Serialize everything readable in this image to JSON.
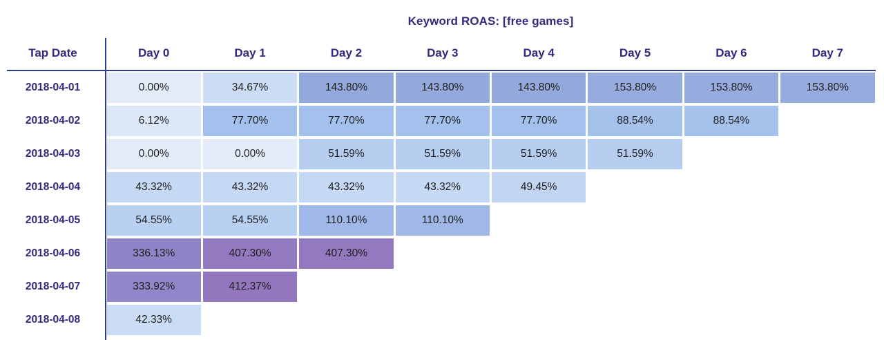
{
  "title": "Keyword ROAS: [free games]",
  "colors": {
    "ink": "#33297e",
    "line": "#2b3e8c",
    "cell_text": "#1e1e1e",
    "background": "#ffffff"
  },
  "table": {
    "corner_header": "Tap Date",
    "day_headers": [
      "Day 0",
      "Day 1",
      "Day 2",
      "Day 3",
      "Day 4",
      "Day 5",
      "Day 6",
      "Day 7"
    ],
    "rows": [
      {
        "date": "2018-04-01",
        "cells": [
          {
            "text": "0.00%",
            "bg": "#e3ecf8"
          },
          {
            "text": "34.67%",
            "bg": "#cbdcf4"
          },
          {
            "text": "143.80%",
            "bg": "#93a8db"
          },
          {
            "text": "143.80%",
            "bg": "#93a8db"
          },
          {
            "text": "143.80%",
            "bg": "#93a8db"
          },
          {
            "text": "153.80%",
            "bg": "#97abde"
          },
          {
            "text": "153.80%",
            "bg": "#97abde"
          },
          {
            "text": "153.80%",
            "bg": "#97abde"
          }
        ]
      },
      {
        "date": "2018-04-02",
        "cells": [
          {
            "text": "6.12%",
            "bg": "#dce8f7"
          },
          {
            "text": "77.70%",
            "bg": "#a4c1ed"
          },
          {
            "text": "77.70%",
            "bg": "#a4c1ed"
          },
          {
            "text": "77.70%",
            "bg": "#a4c1ed"
          },
          {
            "text": "77.70%",
            "bg": "#a4c1ed"
          },
          {
            "text": "88.54%",
            "bg": "#a5c2ec"
          },
          {
            "text": "88.54%",
            "bg": "#a5c2ec"
          },
          null
        ]
      },
      {
        "date": "2018-04-03",
        "cells": [
          {
            "text": "0.00%",
            "bg": "#e3ecf8"
          },
          {
            "text": "0.00%",
            "bg": "#e3ecf8"
          },
          {
            "text": "51.59%",
            "bg": "#b6cdf0"
          },
          {
            "text": "51.59%",
            "bg": "#b6cdf0"
          },
          {
            "text": "51.59%",
            "bg": "#b6cdf0"
          },
          {
            "text": "51.59%",
            "bg": "#b6cdf0"
          },
          null,
          null
        ]
      },
      {
        "date": "2018-04-04",
        "cells": [
          {
            "text": "43.32%",
            "bg": "#c6d9f4"
          },
          {
            "text": "43.32%",
            "bg": "#c6d9f4"
          },
          {
            "text": "43.32%",
            "bg": "#c6d9f4"
          },
          {
            "text": "43.32%",
            "bg": "#c6d9f4"
          },
          {
            "text": "49.45%",
            "bg": "#c1d5f2"
          },
          null,
          null,
          null
        ]
      },
      {
        "date": "2018-04-05",
        "cells": [
          {
            "text": "54.55%",
            "bg": "#b8d0f2"
          },
          {
            "text": "54.55%",
            "bg": "#b8d0f2"
          },
          {
            "text": "110.10%",
            "bg": "#9fb8e7"
          },
          {
            "text": "110.10%",
            "bg": "#9fb8e7"
          },
          null,
          null,
          null,
          null
        ]
      },
      {
        "date": "2018-04-06",
        "cells": [
          {
            "text": "336.13%",
            "bg": "#8e85c8"
          },
          {
            "text": "407.30%",
            "bg": "#9379c0"
          },
          {
            "text": "407.30%",
            "bg": "#9379c0"
          },
          null,
          null,
          null,
          null,
          null
        ]
      },
      {
        "date": "2018-04-07",
        "cells": [
          {
            "text": "333.92%",
            "bg": "#9086c9"
          },
          {
            "text": "412.37%",
            "bg": "#9277be"
          },
          null,
          null,
          null,
          null,
          null,
          null
        ]
      },
      {
        "date": "2018-04-08",
        "cells": [
          {
            "text": "42.33%",
            "bg": "#cadcf5"
          },
          null,
          null,
          null,
          null,
          null,
          null,
          null
        ]
      }
    ]
  },
  "chart_data": {
    "type": "heatmap",
    "title": "Keyword ROAS: [free games]",
    "x_labels": [
      "Day 0",
      "Day 1",
      "Day 2",
      "Day 3",
      "Day 4",
      "Day 5",
      "Day 6",
      "Day 7"
    ],
    "y_labels": [
      "2018-04-01",
      "2018-04-02",
      "2018-04-03",
      "2018-04-04",
      "2018-04-05",
      "2018-04-06",
      "2018-04-07",
      "2018-04-08"
    ],
    "unit": "%",
    "values": [
      [
        0.0,
        34.67,
        143.8,
        143.8,
        143.8,
        153.8,
        153.8,
        153.8
      ],
      [
        6.12,
        77.7,
        77.7,
        77.7,
        77.7,
        88.54,
        88.54,
        null
      ],
      [
        0.0,
        0.0,
        51.59,
        51.59,
        51.59,
        51.59,
        null,
        null
      ],
      [
        43.32,
        43.32,
        43.32,
        43.32,
        49.45,
        null,
        null,
        null
      ],
      [
        54.55,
        54.55,
        110.1,
        110.1,
        null,
        null,
        null,
        null
      ],
      [
        336.13,
        407.3,
        407.3,
        null,
        null,
        null,
        null,
        null
      ],
      [
        333.92,
        412.37,
        null,
        null,
        null,
        null,
        null,
        null
      ],
      [
        42.33,
        null,
        null,
        null,
        null,
        null,
        null,
        null
      ]
    ],
    "layout_hints": {
      "grid": false,
      "color_scale": "light blue (low) to medium blue to purple (high)",
      "row_header_column": "Tap Date"
    }
  }
}
